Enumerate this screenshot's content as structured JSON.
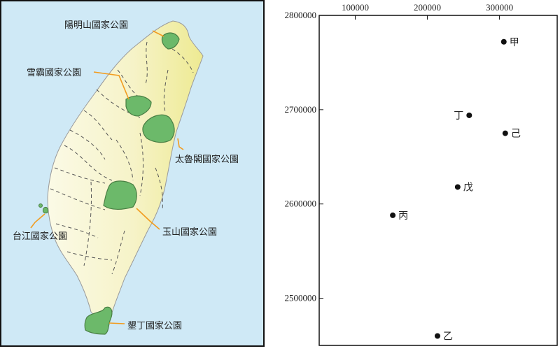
{
  "map": {
    "parks": [
      {
        "name": "陽明山國家公園"
      },
      {
        "name": "雪霸國家公園"
      },
      {
        "name": "太魯閣國家公園"
      },
      {
        "name": "玉山國家公園"
      },
      {
        "name": "台江國家公園"
      },
      {
        "name": "墾丁國家公園"
      }
    ],
    "colors": {
      "sea": "#cfe9f6",
      "land_light": "#f8f6d8",
      "land_east": "#f0ec9a",
      "park": "#6cb96a",
      "park_edge": "#4a7f44",
      "leader": "#f29c1f",
      "border": "#111111"
    }
  },
  "chart_data": {
    "type": "scatter",
    "title": "",
    "xlabel": "",
    "ylabel": "",
    "x_axis_position": "top",
    "x_ticks": [
      100000,
      200000,
      300000
    ],
    "y_ticks": [
      2800000,
      2700000,
      2600000,
      2500000
    ],
    "xlim": [
      50000,
      380000
    ],
    "ylim": [
      2450000,
      2800000
    ],
    "grid": false,
    "points": [
      {
        "label": "甲",
        "x": 306000,
        "y": 2772000
      },
      {
        "label": "丁",
        "x": 258000,
        "y": 2694000
      },
      {
        "label": "己",
        "x": 308000,
        "y": 2675000
      },
      {
        "label": "戊",
        "x": 242000,
        "y": 2618000
      },
      {
        "label": "丙",
        "x": 152000,
        "y": 2588000
      },
      {
        "label": "乙",
        "x": 214000,
        "y": 2460000
      }
    ]
  }
}
